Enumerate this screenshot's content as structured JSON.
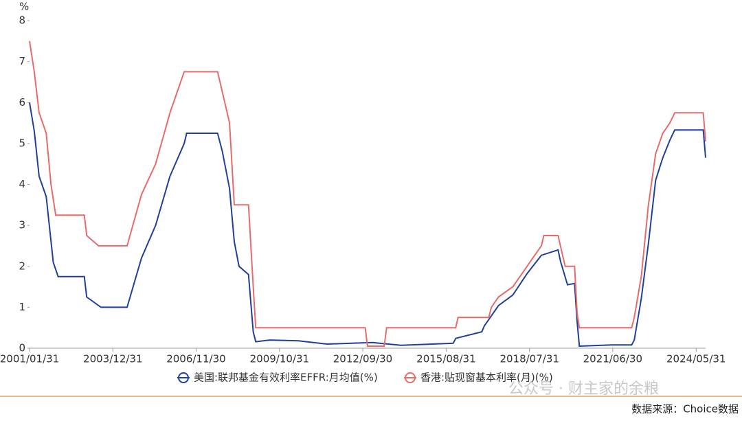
{
  "chart_data": {
    "type": "line",
    "y_label": "%",
    "xlim": [
      "2001/01/31",
      "2024/09/30"
    ],
    "xticks": [
      "2001/01/31",
      "2003/12/31",
      "2006/11/30",
      "2009/10/31",
      "2012/09/30",
      "2015/08/31",
      "2018/07/31",
      "2021/06/30",
      "2024/05/31"
    ],
    "ylim": [
      0,
      8
    ],
    "yticks": [
      0,
      1,
      2,
      3,
      4,
      5,
      6,
      7,
      8
    ],
    "legend": "bottom",
    "series": [
      {
        "name": "美国:联邦基金有效利率EFFR:月均值(%)",
        "color": "#1f3f9a",
        "x": [
          "2001/01/31",
          "2001/03/31",
          "2001/05/31",
          "2001/08/31",
          "2001/11/30",
          "2002/01/31",
          "2002/12/31",
          "2003/01/31",
          "2003/07/31",
          "2004/06/30",
          "2004/12/31",
          "2005/06/30",
          "2005/12/31",
          "2006/06/30",
          "2006/07/31",
          "2007/08/31",
          "2007/10/31",
          "2008/01/31",
          "2008/03/31",
          "2008/05/31",
          "2008/09/30",
          "2008/11/30",
          "2008/12/31",
          "2009/06/30",
          "2010/06/30",
          "2011/06/30",
          "2013/01/31",
          "2014/01/31",
          "2015/11/30",
          "2015/12/31",
          "2016/11/30",
          "2016/12/31",
          "2017/06/30",
          "2017/12/31",
          "2018/06/30",
          "2018/12/31",
          "2019/06/30",
          "2019/07/31",
          "2019/08/31",
          "2019/11/30",
          "2020/02/29",
          "2020/03/31",
          "2020/04/30",
          "2021/06/30",
          "2022/02/28",
          "2022/03/31",
          "2022/06/30",
          "2022/09/30",
          "2022/12/31",
          "2023/03/31",
          "2023/06/30",
          "2023/08/31",
          "2024/08/31",
          "2024/09/30"
        ],
        "values": [
          6.0,
          5.3,
          4.2,
          3.7,
          2.1,
          1.75,
          1.75,
          1.25,
          1.0,
          1.0,
          2.2,
          3.0,
          4.2,
          5.0,
          5.25,
          5.25,
          4.8,
          3.9,
          2.6,
          2.0,
          1.8,
          0.4,
          0.16,
          0.2,
          0.18,
          0.1,
          0.14,
          0.07,
          0.12,
          0.24,
          0.4,
          0.54,
          1.04,
          1.3,
          1.82,
          2.27,
          2.38,
          2.4,
          2.13,
          1.55,
          1.58,
          0.65,
          0.05,
          0.08,
          0.08,
          0.2,
          1.21,
          2.56,
          4.1,
          4.65,
          5.08,
          5.33,
          5.33,
          4.65
        ]
      },
      {
        "name": "香港:贴现窗基本利率(月)(%)",
        "color": "#e86b6b",
        "x": [
          "2001/01/31",
          "2001/03/31",
          "2001/05/31",
          "2001/08/31",
          "2001/10/31",
          "2001/12/31",
          "2002/12/31",
          "2003/01/31",
          "2003/06/30",
          "2004/06/30",
          "2004/12/31",
          "2005/06/30",
          "2005/12/31",
          "2006/06/30",
          "2007/08/31",
          "2007/10/31",
          "2008/01/31",
          "2008/03/31",
          "2008/09/30",
          "2008/11/30",
          "2008/12/31",
          "2012/10/31",
          "2012/11/30",
          "2013/06/30",
          "2013/07/31",
          "2015/12/31",
          "2016/01/31",
          "2017/02/28",
          "2017/03/31",
          "2017/06/30",
          "2017/12/31",
          "2018/03/31",
          "2018/06/30",
          "2018/09/30",
          "2018/12/31",
          "2019/01/31",
          "2019/07/31",
          "2019/08/31",
          "2019/09/30",
          "2019/10/31",
          "2020/02/29",
          "2020/03/31",
          "2020/04/30",
          "2022/02/28",
          "2022/03/31",
          "2022/06/30",
          "2022/09/30",
          "2022/12/31",
          "2023/03/31",
          "2023/06/30",
          "2023/08/31",
          "2024/08/31",
          "2024/09/30"
        ],
        "values": [
          7.5,
          6.75,
          5.75,
          5.25,
          4.0,
          3.25,
          3.25,
          2.75,
          2.5,
          2.5,
          3.75,
          4.5,
          5.75,
          6.75,
          6.75,
          6.25,
          5.5,
          3.5,
          3.5,
          1.5,
          0.5,
          0.5,
          0.05,
          0.05,
          0.5,
          0.5,
          0.75,
          0.75,
          1.0,
          1.25,
          1.5,
          1.75,
          2.0,
          2.25,
          2.5,
          2.75,
          2.75,
          2.5,
          2.25,
          2.0,
          2.0,
          0.86,
          0.5,
          0.5,
          0.75,
          1.75,
          3.5,
          4.75,
          5.25,
          5.5,
          5.75,
          5.75,
          5.05
        ]
      }
    ]
  },
  "watermark": "公众号 · 财主家的余粮",
  "source": "数据来源：Choice数据"
}
